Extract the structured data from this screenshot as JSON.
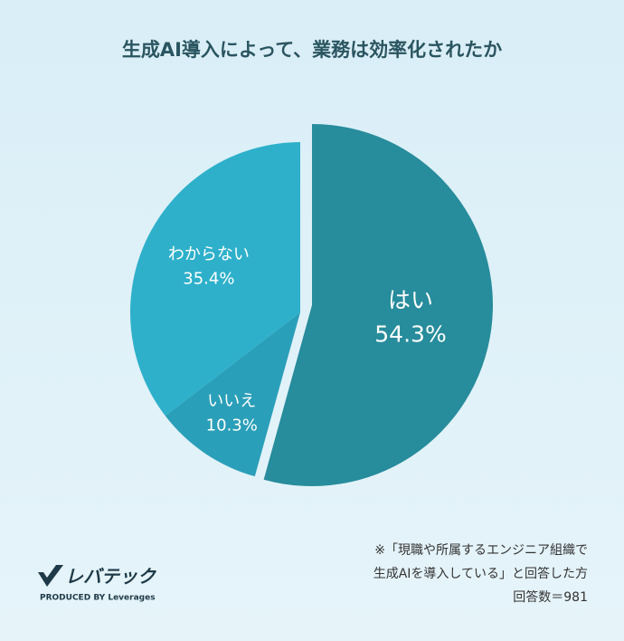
{
  "chart_data": {
    "type": "pie",
    "title": "生成AI導入によって、業務は効率化されたか",
    "categories": [
      "はい",
      "いいえ",
      "わからない"
    ],
    "values": [
      54.3,
      10.3,
      35.4
    ],
    "value_labels": [
      "54.3%",
      "10.3%",
      "35.4%"
    ],
    "colors": [
      "#278c9c",
      "#2a9fb9",
      "#2eb0cb"
    ],
    "notes": [
      "※「現職や所属するエンジニア組織で",
      "生成AIを導入している」と回答した方",
      "回答数＝981"
    ],
    "brand": "レバテック",
    "brand_sub": "PRODUCED BY Leverages"
  }
}
